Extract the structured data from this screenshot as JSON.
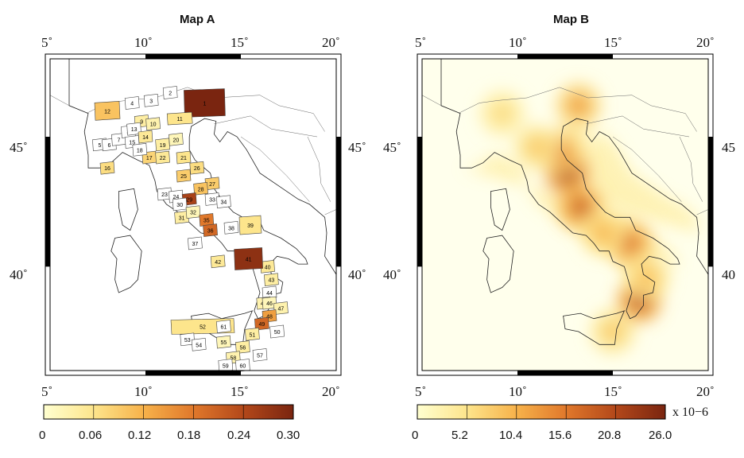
{
  "colors": {
    "scale": [
      "#ffffd0",
      "#fde58c",
      "#f7b24a",
      "#e0782b",
      "#b3481a",
      "#7a2510"
    ],
    "coast": "#222222",
    "frame": "#000000"
  },
  "mapA": {
    "title": "Map A",
    "lon_labels": [
      "5˚",
      "10˚",
      "15˚",
      "20˚"
    ],
    "lat_labels": [
      "45˚",
      "40˚"
    ],
    "lat_labels_right": [
      "45˚",
      "40˚"
    ],
    "colorbar": {
      "ticks": [
        "0",
        "0.06",
        "0.12",
        "0.18",
        "0.24",
        "0.30"
      ],
      "range": [
        0,
        0.3
      ]
    },
    "zones": [
      {
        "id": "1",
        "v": 0.3
      },
      {
        "id": "2",
        "v": 0
      },
      {
        "id": "3",
        "v": 0
      },
      {
        "id": "4",
        "v": 0
      },
      {
        "id": "5",
        "v": 0
      },
      {
        "id": "6",
        "v": 0
      },
      {
        "id": "7",
        "v": 0
      },
      {
        "id": "8",
        "v": 0
      },
      {
        "id": "9",
        "v": 0.04
      },
      {
        "id": "10",
        "v": 0.03
      },
      {
        "id": "11",
        "v": 0.06
      },
      {
        "id": "12",
        "v": 0.1
      },
      {
        "id": "13",
        "v": 0
      },
      {
        "id": "14",
        "v": 0.05
      },
      {
        "id": "15",
        "v": 0
      },
      {
        "id": "16",
        "v": 0.07
      },
      {
        "id": "17",
        "v": 0.08
      },
      {
        "id": "18",
        "v": 0
      },
      {
        "id": "19",
        "v": 0.04
      },
      {
        "id": "20",
        "v": 0.02
      },
      {
        "id": "21",
        "v": 0.06
      },
      {
        "id": "22",
        "v": 0.05
      },
      {
        "id": "23",
        "v": 0
      },
      {
        "id": "24",
        "v": 0
      },
      {
        "id": "25",
        "v": 0.09
      },
      {
        "id": "26",
        "v": 0.07
      },
      {
        "id": "27",
        "v": 0.09
      },
      {
        "id": "28",
        "v": 0.1
      },
      {
        "id": "29",
        "v": 0.25
      },
      {
        "id": "30",
        "v": 0
      },
      {
        "id": "31",
        "v": 0.04
      },
      {
        "id": "32",
        "v": 0.02
      },
      {
        "id": "33",
        "v": 0
      },
      {
        "id": "34",
        "v": 0
      },
      {
        "id": "35",
        "v": 0.18
      },
      {
        "id": "36",
        "v": 0.2
      },
      {
        "id": "37",
        "v": 0
      },
      {
        "id": "38",
        "v": 0
      },
      {
        "id": "39",
        "v": 0.06
      },
      {
        "id": "40",
        "v": 0.05
      },
      {
        "id": "41",
        "v": 0.28
      },
      {
        "id": "42",
        "v": 0.05
      },
      {
        "id": "43",
        "v": 0.04
      },
      {
        "id": "44",
        "v": 0
      },
      {
        "id": "45",
        "v": 0.03
      },
      {
        "id": "46",
        "v": 0.02
      },
      {
        "id": "47",
        "v": 0.03
      },
      {
        "id": "48",
        "v": 0.14
      },
      {
        "id": "49",
        "v": 0.2
      },
      {
        "id": "50",
        "v": 0
      },
      {
        "id": "51",
        "v": 0.04
      },
      {
        "id": "52",
        "v": 0.06
      },
      {
        "id": "53",
        "v": 0
      },
      {
        "id": "54",
        "v": 0
      },
      {
        "id": "55",
        "v": 0.02
      },
      {
        "id": "56",
        "v": 0.04
      },
      {
        "id": "57",
        "v": 0
      },
      {
        "id": "58",
        "v": 0.03
      },
      {
        "id": "59",
        "v": 0
      },
      {
        "id": "60",
        "v": 0
      },
      {
        "id": "61",
        "v": 0
      }
    ]
  },
  "mapB": {
    "title": "Map B",
    "lon_labels": [
      "5˚",
      "10˚",
      "15˚",
      "20˚"
    ],
    "lat_labels": [
      "45˚",
      "40˚"
    ],
    "lat_labels_right": [
      "45",
      "40"
    ],
    "colorbar": {
      "ticks": [
        "0",
        "5.2",
        "10.4",
        "15.6",
        "20.8",
        "26.0"
      ],
      "range": [
        0,
        26.0
      ],
      "unit": "x 10−6"
    },
    "hotspots": [
      {
        "lon": 12.6,
        "lat": 43.6,
        "v": 22
      },
      {
        "lon": 13.3,
        "lat": 42.3,
        "v": 18
      },
      {
        "lon": 12.2,
        "lat": 44.4,
        "v": 14
      },
      {
        "lon": 13.2,
        "lat": 46.2,
        "v": 12
      },
      {
        "lon": 15.9,
        "lat": 40.9,
        "v": 16
      },
      {
        "lon": 16.4,
        "lat": 38.7,
        "v": 20
      },
      {
        "lon": 15.0,
        "lat": 37.5,
        "v": 8
      },
      {
        "lon": 9.2,
        "lat": 45.9,
        "v": 6
      },
      {
        "lon": 11.0,
        "lat": 44.6,
        "v": 8
      },
      {
        "lon": 14.5,
        "lat": 41.3,
        "v": 10
      },
      {
        "lon": 16.8,
        "lat": 39.6,
        "v": 9
      }
    ]
  }
}
